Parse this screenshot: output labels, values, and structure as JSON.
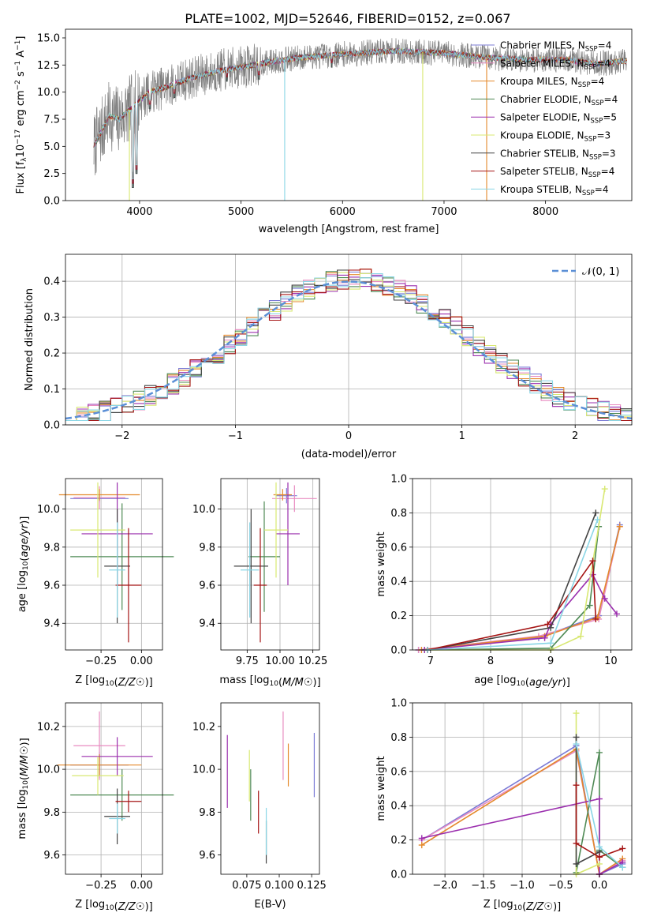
{
  "figure": {
    "title": "PLATE=1002, MJD=52646, FIBERID=0152, z=0.067",
    "colors": {
      "data": "#808080",
      "series": [
        "#7b7bd6",
        "#e88bc0",
        "#e4892b",
        "#4f8a55",
        "#9b2fae",
        "#d8e872",
        "#444444",
        "#a51414",
        "#8ad6e6"
      ],
      "gaussian": "#5b8fd6"
    }
  },
  "chart_data": [
    {
      "id": "spectrum",
      "type": "line",
      "title": "PLATE=1002, MJD=52646, FIBERID=0152, z=0.067",
      "xlabel": "wavelength [Angstrom, rest frame]",
      "ylabel": "Flux [f_λ 10^-17 erg cm^-2 s^-1 A^-1]",
      "xlim": [
        3270,
        8850
      ],
      "ylim": [
        0,
        15.8
      ],
      "xticks": [
        4000,
        5000,
        6000,
        7000,
        8000
      ],
      "yticks": [
        0.0,
        2.5,
        5.0,
        7.5,
        10.0,
        12.5,
        15.0
      ],
      "grid": false,
      "legend_position": "right",
      "series": [
        {
          "name": "Chabrier MILES, N_SSP=4"
        },
        {
          "name": "Salpeter MILES, N_SSP=4"
        },
        {
          "name": "Kroupa MILES, N_SSP=4"
        },
        {
          "name": "Chabrier ELODIE, N_SSP=4"
        },
        {
          "name": "Salpeter ELODIE, N_SSP=5"
        },
        {
          "name": "Kroupa ELODIE, N_SSP=3"
        },
        {
          "name": "Chabrier STELIB, N_SSP=3"
        },
        {
          "name": "Salpeter STELIB, N_SSP=4"
        },
        {
          "name": "Kroupa STELIB, N_SSP=4"
        }
      ],
      "continuum": {
        "x": [
          3550,
          3700,
          3800,
          3950,
          4100,
          4300,
          4500,
          4800,
          5000,
          5300,
          5600,
          6000,
          6500,
          7000,
          7400,
          7800,
          8200,
          8500,
          8800
        ],
        "y": [
          5.0,
          7.8,
          7.5,
          8.8,
          10.0,
          10.6,
          11.3,
          12.0,
          12.3,
          12.8,
          13.2,
          13.5,
          13.8,
          13.6,
          13.2,
          13.0,
          13.0,
          12.6,
          12.9
        ]
      },
      "model_dips": [
        {
          "x": 3934,
          "y": 1.2
        },
        {
          "x": 3969,
          "y": 2.5
        },
        {
          "x": 4102,
          "y": 8.5
        },
        {
          "x": 4340,
          "y": 9.5
        },
        {
          "x": 4861,
          "y": 11.0
        },
        {
          "x": 5175,
          "y": 11.2
        },
        {
          "x": 5893,
          "y": 12.3
        }
      ],
      "artifacts": [
        {
          "x": 3900,
          "y": 0.0,
          "color_index": 5
        },
        {
          "x": 5430,
          "y": 0.0,
          "color_index": 8
        },
        {
          "x": 6790,
          "y": 0.0,
          "color_index": 5
        },
        {
          "x": 7420,
          "y": 0.0,
          "color_index": 2
        }
      ],
      "data_range": [
        3550,
        8800
      ]
    },
    {
      "id": "residuals",
      "type": "histogram",
      "xlabel": "(data-model)/error",
      "ylabel": "Normed distribution",
      "xlim": [
        -2.5,
        2.5
      ],
      "ylim": [
        0,
        0.475
      ],
      "xticks": [
        -2,
        -1,
        0,
        1,
        2
      ],
      "yticks": [
        0.0,
        0.1,
        0.2,
        0.3,
        0.4
      ],
      "grid": true,
      "bin_width": 0.1,
      "legend": {
        "label": "𝒩(0, 1)",
        "position": "top-right"
      }
    },
    {
      "id": "age-z",
      "type": "errorbar",
      "xlabel": "Z [log10(Z/Z☉)]",
      "ylabel": "age  [log10(age/yr)]",
      "xlim": [
        -0.47,
        0.13
      ],
      "ylim": [
        9.26,
        10.16
      ],
      "xticks": [
        -0.25,
        0.0
      ],
      "xtick_labels": [
        "−0.25",
        "0.00"
      ],
      "yticks": [
        9.4,
        9.6,
        9.8,
        10.0
      ],
      "grid": true,
      "points": [
        {
          "x": -0.26,
          "xerr": 0.18,
          "y": 10.055,
          "yerr": 0.02
        },
        {
          "x": -0.26,
          "xerr": 0.16,
          "y": 10.06,
          "yerr": 0.06
        },
        {
          "x": -0.26,
          "xerr": 0.25,
          "y": 10.075,
          "yerr": 0.03
        },
        {
          "x": -0.12,
          "xerr": 0.32,
          "y": 9.75,
          "yerr": 0.28
        },
        {
          "x": -0.15,
          "xerr": 0.22,
          "y": 9.87,
          "yerr": 0.27
        },
        {
          "x": -0.27,
          "xerr": 0.17,
          "y": 9.89,
          "yerr": 0.25
        },
        {
          "x": -0.15,
          "xerr": 0.08,
          "y": 9.7,
          "yerr": 0.3
        },
        {
          "x": -0.08,
          "xerr": 0.08,
          "y": 9.6,
          "yerr": 0.3
        },
        {
          "x": -0.15,
          "xerr": 0.05,
          "y": 9.68,
          "yerr": 0.25
        }
      ]
    },
    {
      "id": "age-mass",
      "type": "errorbar",
      "xlabel": "mass [log10(M/M☉)]",
      "xlim": [
        9.55,
        10.3
      ],
      "ylim": [
        9.26,
        10.16
      ],
      "xticks": [
        9.75,
        10.0,
        10.25
      ],
      "xtick_labels": [
        "9.75",
        "10.00",
        "10.25"
      ],
      "yticks": [
        9.4,
        9.6,
        9.8,
        10.0
      ],
      "grid": true,
      "points": [
        {
          "x": 10.05,
          "xerr": 0.08,
          "y": 10.07,
          "yerr": 0.04
        },
        {
          "x": 10.11,
          "xerr": 0.17,
          "y": 10.055,
          "yerr": 0.07
        },
        {
          "x": 10.02,
          "xerr": 0.07,
          "y": 10.075,
          "yerr": 0.03
        },
        {
          "x": 9.88,
          "xerr": 0.12,
          "y": 9.75,
          "yerr": 0.29
        },
        {
          "x": 10.06,
          "xerr": 0.09,
          "y": 9.87,
          "yerr": 0.27
        },
        {
          "x": 9.97,
          "xerr": 0.09,
          "y": 9.89,
          "yerr": 0.25
        },
        {
          "x": 9.78,
          "xerr": 0.13,
          "y": 9.7,
          "yerr": 0.3
        },
        {
          "x": 9.85,
          "xerr": 0.05,
          "y": 9.6,
          "yerr": 0.3
        },
        {
          "x": 9.77,
          "xerr": 0.07,
          "y": 9.68,
          "yerr": 0.25
        }
      ]
    },
    {
      "id": "weight-age",
      "type": "line",
      "xlabel": "age  [log10(age/yr)]",
      "ylabel": "mass weight",
      "xlim": [
        6.7,
        10.35
      ],
      "ylim": [
        0,
        1.0
      ],
      "xticks": [
        7,
        8,
        9,
        10
      ],
      "yticks": [
        0.0,
        0.2,
        0.4,
        0.6,
        0.8,
        1.0
      ],
      "grid": true,
      "series": [
        {
          "x": [
            6.8,
            8.8,
            9.8,
            10.15
          ],
          "y": [
            0.0,
            0.07,
            0.2,
            0.73
          ]
        },
        {
          "x": [
            6.8,
            8.8,
            9.8,
            10.15
          ],
          "y": [
            0.0,
            0.08,
            0.18,
            0.72
          ]
        },
        {
          "x": [
            6.85,
            8.9,
            9.78,
            10.15
          ],
          "y": [
            0.0,
            0.08,
            0.19,
            0.72
          ]
        },
        {
          "x": [
            6.9,
            9.0,
            9.65,
            9.8
          ],
          "y": [
            0.0,
            0.01,
            0.26,
            0.72
          ]
        },
        {
          "x": [
            6.9,
            8.9,
            9.0,
            9.7,
            9.9,
            10.1
          ],
          "y": [
            0.0,
            0.07,
            0.15,
            0.44,
            0.3,
            0.21
          ]
        },
        {
          "x": [
            6.95,
            9.0,
            9.5,
            9.9
          ],
          "y": [
            0.0,
            0.0,
            0.08,
            0.94
          ]
        },
        {
          "x": [
            6.95,
            9.0,
            9.75
          ],
          "y": [
            0.0,
            0.13,
            0.8
          ]
        },
        {
          "x": [
            6.95,
            8.95,
            9.7,
            9.75
          ],
          "y": [
            0.0,
            0.15,
            0.52,
            0.18
          ]
        },
        {
          "x": [
            6.95,
            9.0,
            9.78
          ],
          "y": [
            0.0,
            0.04,
            0.76
          ]
        }
      ]
    },
    {
      "id": "mass-z",
      "type": "errorbar",
      "xlabel": "Z [log10(Z/Z☉)]",
      "ylabel": "mass [log10(M/M☉)]",
      "xlim": [
        -0.47,
        0.13
      ],
      "ylim": [
        9.51,
        10.31
      ],
      "xticks": [
        -0.25,
        0.0
      ],
      "xtick_labels": [
        "−0.25",
        "0.00"
      ],
      "yticks": [
        9.6,
        9.8,
        10.0,
        10.2
      ],
      "grid": true,
      "points": [
        {
          "x": -0.26,
          "xerr": 0.18,
          "y": 10.02,
          "yerr": 0.06
        },
        {
          "x": -0.26,
          "xerr": 0.16,
          "y": 10.11,
          "yerr": 0.16
        },
        {
          "x": -0.26,
          "xerr": 0.26,
          "y": 10.02,
          "yerr": 0.05
        },
        {
          "x": -0.12,
          "xerr": 0.32,
          "y": 9.88,
          "yerr": 0.12
        },
        {
          "x": -0.15,
          "xerr": 0.22,
          "y": 10.06,
          "yerr": 0.09
        },
        {
          "x": -0.27,
          "xerr": 0.16,
          "y": 9.97,
          "yerr": 0.09
        },
        {
          "x": -0.15,
          "xerr": 0.08,
          "y": 9.78,
          "yerr": 0.13
        },
        {
          "x": -0.08,
          "xerr": 0.08,
          "y": 9.85,
          "yerr": 0.05
        },
        {
          "x": -0.15,
          "xerr": 0.05,
          "y": 9.77,
          "yerr": 0.07
        }
      ]
    },
    {
      "id": "mass-ebv",
      "type": "errorbar",
      "xlabel": "E(B-V)",
      "xlim": [
        0.055,
        0.131
      ],
      "ylim": [
        9.51,
        10.31
      ],
      "xticks": [
        0.075,
        0.1,
        0.125
      ],
      "xtick_labels": [
        "0.075",
        "0.100",
        "0.125"
      ],
      "yticks": [
        9.6,
        9.8,
        10.0,
        10.2
      ],
      "grid": false,
      "points": [
        {
          "x": 0.127,
          "y": 10.02,
          "yerr": 0.15
        },
        {
          "x": 0.103,
          "y": 10.11,
          "yerr": 0.16
        },
        {
          "x": 0.107,
          "y": 10.02,
          "yerr": 0.1
        },
        {
          "x": 0.078,
          "y": 9.88,
          "yerr": 0.12
        },
        {
          "x": 0.06,
          "y": 9.99,
          "yerr": 0.17
        },
        {
          "x": 0.077,
          "y": 9.97,
          "yerr": 0.12
        },
        {
          "x": 0.09,
          "y": 9.66,
          "yerr": 0.1
        },
        {
          "x": 0.084,
          "y": 9.8,
          "yerr": 0.1
        },
        {
          "x": 0.09,
          "y": 9.71,
          "yerr": 0.11
        }
      ]
    },
    {
      "id": "weight-z",
      "type": "line",
      "xlabel": "Z [log10(Z/Z☉)]",
      "ylabel": "mass weight",
      "xlim": [
        -2.42,
        0.42
      ],
      "ylim": [
        0,
        1.0
      ],
      "xticks": [
        -2.0,
        -1.5,
        -1.0,
        -0.5,
        0.0
      ],
      "xtick_labels": [
        "−2.0",
        "−1.5",
        "−1.0",
        "−0.5",
        "0.0"
      ],
      "yticks": [
        0.0,
        0.2,
        0.4,
        0.6,
        0.8,
        1.0
      ],
      "grid": true,
      "series": [
        {
          "x": [
            -2.3,
            -0.3,
            0.0,
            0.3
          ],
          "y": [
            0.2,
            0.75,
            0.0,
            0.06
          ]
        },
        {
          "x": [
            -2.3,
            -0.3,
            0.0,
            0.3
          ],
          "y": [
            0.2,
            0.72,
            0.0,
            0.08
          ]
        },
        {
          "x": [
            -2.3,
            -0.3,
            0.0,
            0.3
          ],
          "y": [
            0.17,
            0.73,
            0.0,
            0.09
          ]
        },
        {
          "x": [
            -0.3,
            0.0,
            0.0,
            0.3
          ],
          "y": [
            0.01,
            0.71,
            0.14,
            0.04
          ]
        },
        {
          "x": [
            -2.3,
            0.0,
            0.0,
            0.3
          ],
          "y": [
            0.21,
            0.44,
            0.0,
            0.07
          ]
        },
        {
          "x": [
            -0.3,
            -0.3,
            0.0
          ],
          "y": [
            0.94,
            0.0,
            0.06
          ]
        },
        {
          "x": [
            -0.3,
            -0.3,
            0.0
          ],
          "y": [
            0.8,
            0.06,
            0.13
          ]
        },
        {
          "x": [
            -0.3,
            -0.3,
            0.0,
            0.3
          ],
          "y": [
            0.52,
            0.18,
            0.1,
            0.15
          ]
        },
        {
          "x": [
            -0.3,
            0.0,
            0.3
          ],
          "y": [
            0.76,
            0.16,
            0.04
          ]
        }
      ]
    }
  ]
}
